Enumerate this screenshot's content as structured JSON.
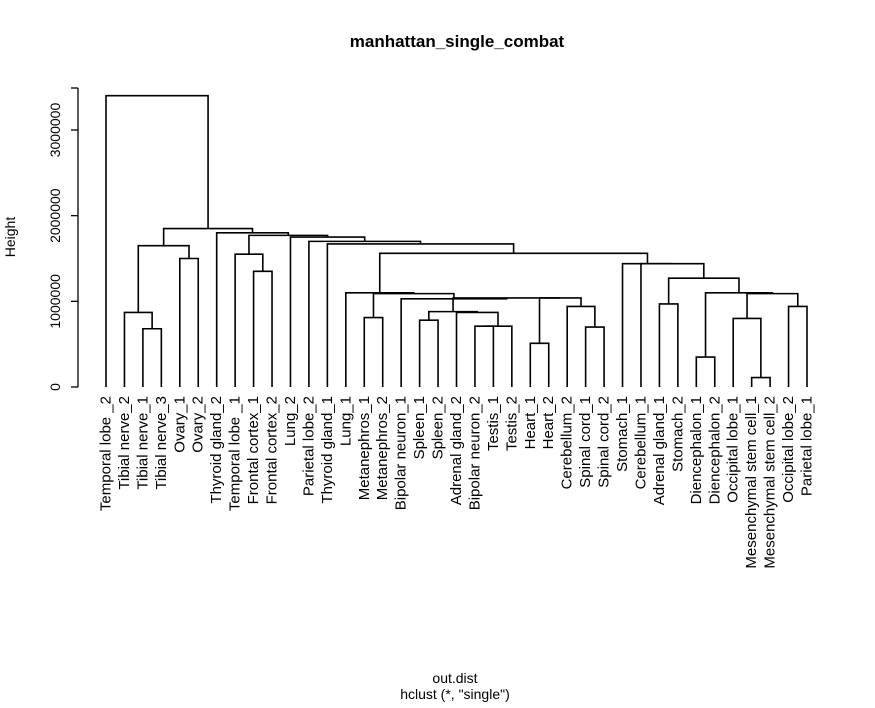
{
  "chart_data": {
    "type": "dendrogram",
    "title": "manhattan_single_combat",
    "xlabel": "out.dist",
    "sub": "hclust (*, \"single\")",
    "ylabel": "Height",
    "ylim": [
      0,
      3500000
    ],
    "yticks": [
      {
        "value": 0,
        "label": "0"
      },
      {
        "value": 1000000,
        "label": "1000000"
      },
      {
        "value": 2000000,
        "label": "2000000"
      },
      {
        "value": 3000000,
        "label": "3000000"
      }
    ],
    "leaves": [
      "Temporal lobe _2",
      "Tibial nerve_2",
      "Tibial nerve_1",
      "Tibial nerve_3",
      "Ovary_1",
      "Ovary_2",
      "Thyroid gland_2",
      "Temporal lobe _1",
      "Frontal cortex_1",
      "Frontal cortex_2",
      "Lung_2",
      "Parietal lobe_2",
      "Thyroid gland_1",
      "Lung_1",
      "Metanephros_1",
      "Metanephros_2",
      "Bipolar neuron_1",
      "Spleen_1",
      "Spleen_2",
      "Adrenal gland_2",
      "Bipolar neuron_2",
      "Testis_1",
      "Testis_2",
      "Heart_1",
      "Heart_2",
      "Cerebellum_2",
      "Spinal cord_1",
      "Spinal cord_2",
      "Stomach_1",
      "Cerebellum_1",
      "Adrenal gland_1",
      "Stomach_2",
      "Diencephalon_1",
      "Diencephalon_2",
      "Occipital lobe_1",
      "Mesenchymal stem cell_1",
      "Mesenchymal stem cell_2",
      "Occipital lobe_2",
      "Parietal lobe_1"
    ],
    "merges": [
      {
        "id": "m1",
        "left": "L:Tibial nerve_1",
        "right": "L:Tibial nerve_3",
        "height": 680000
      },
      {
        "id": "m2",
        "left": "L:Tibial nerve_2",
        "right": "m1",
        "height": 870000
      },
      {
        "id": "m3",
        "left": "L:Ovary_1",
        "right": "L:Ovary_2",
        "height": 1500000
      },
      {
        "id": "m4",
        "left": "m2",
        "right": "m3",
        "height": 1650000
      },
      {
        "id": "m5",
        "left": "L:Frontal cortex_1",
        "right": "L:Frontal cortex_2",
        "height": 1350000
      },
      {
        "id": "m6",
        "left": "L:Temporal lobe _1",
        "right": "m5",
        "height": 1550000
      },
      {
        "id": "m7",
        "left": "L:Metanephros_1",
        "right": "L:Metanephros_2",
        "height": 810000
      },
      {
        "id": "m8",
        "left": "L:Spleen_1",
        "right": "L:Spleen_2",
        "height": 780000
      },
      {
        "id": "m9",
        "left": "L:Bipolar neuron_2",
        "right": "L:Testis_1",
        "height": 710000
      },
      {
        "id": "m10",
        "left": "m9",
        "right": "L:Testis_2",
        "height": 710000
      },
      {
        "id": "m11",
        "left": "L:Adrenal gland_2",
        "right": "m10",
        "height": 870000
      },
      {
        "id": "m12",
        "left": "m8",
        "right": "m11",
        "height": 880000
      },
      {
        "id": "m13",
        "left": "L:Heart_1",
        "right": "L:Heart_2",
        "height": 510000
      },
      {
        "id": "m14",
        "left": "L:Spinal cord_1",
        "right": "L:Spinal cord_2",
        "height": 700000
      },
      {
        "id": "m15",
        "left": "L:Cerebellum_2",
        "right": "m14",
        "height": 940000
      },
      {
        "id": "m16",
        "left": "m13",
        "right": "m15",
        "height": 1040000
      },
      {
        "id": "m17",
        "left": "m12",
        "right": "m16",
        "height": 1040000
      },
      {
        "id": "m18",
        "left": "L:Bipolar neuron_1",
        "right": "m17",
        "height": 1030000
      },
      {
        "id": "m19",
        "left": "m7",
        "right": "m18",
        "height": 1090000
      },
      {
        "id": "m20",
        "left": "L:Lung_1",
        "right": "m19",
        "height": 1100000
      },
      {
        "id": "m21",
        "left": "L:Mesenchymal stem cell_1",
        "right": "L:Mesenchymal stem cell_2",
        "height": 110000
      },
      {
        "id": "m22",
        "left": "L:Occipital lobe_1",
        "right": "m21",
        "height": 800000
      },
      {
        "id": "m23",
        "left": "L:Occipital lobe_2",
        "right": "L:Parietal lobe_1",
        "height": 940000
      },
      {
        "id": "m24",
        "left": "m22",
        "right": "m23",
        "height": 1090000
      },
      {
        "id": "m25",
        "left": "L:Diencephalon_1",
        "right": "L:Diencephalon_2",
        "height": 350000
      },
      {
        "id": "m26",
        "left": "m25",
        "right": "m24",
        "height": 1100000
      },
      {
        "id": "m27",
        "left": "L:Adrenal gland_1",
        "right": "L:Stomach_2",
        "height": 970000
      },
      {
        "id": "m28",
        "left": "m27",
        "right": "m26",
        "height": 1270000
      },
      {
        "id": "m29",
        "left": "L:Cerebellum_1",
        "right": "m28",
        "height": 1440000
      },
      {
        "id": "m30",
        "left": "L:Stomach_1",
        "right": "m29",
        "height": 1440000
      },
      {
        "id": "m31",
        "left": "m20",
        "right": "m30",
        "height": 1560000
      },
      {
        "id": "m32",
        "left": "L:Thyroid gland_1",
        "right": "m31",
        "height": 1670000
      },
      {
        "id": "m33",
        "left": "L:Parietal lobe_2",
        "right": "m32",
        "height": 1700000
      },
      {
        "id": "m34",
        "left": "L:Lung_2",
        "right": "m33",
        "height": 1750000
      },
      {
        "id": "m35",
        "left": "m6",
        "right": "m34",
        "height": 1770000
      },
      {
        "id": "m36",
        "left": "L:Thyroid gland_2",
        "right": "m35",
        "height": 1800000
      },
      {
        "id": "m37",
        "left": "m4",
        "right": "m36",
        "height": 1850000
      },
      {
        "id": "m38",
        "left": "L:Temporal lobe _2",
        "right": "m37",
        "height": 3400000
      }
    ]
  }
}
